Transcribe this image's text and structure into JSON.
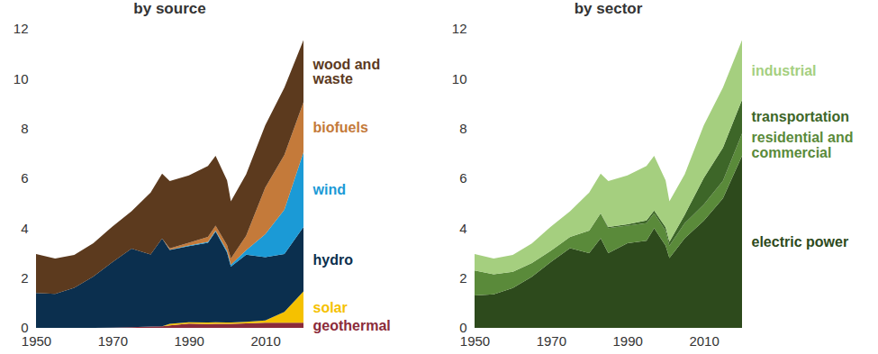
{
  "chart_data": [
    {
      "type": "area",
      "title": "by source",
      "stacked": true,
      "x": [
        1950,
        1955,
        1960,
        1965,
        1970,
        1975,
        1980,
        1983,
        1985,
        1990,
        1995,
        1997,
        2000,
        2001,
        2005,
        2010,
        2015,
        2020
      ],
      "xlim": [
        1950,
        2020
      ],
      "xticks": [
        1950,
        1970,
        1990,
        2010
      ],
      "ylim": [
        0,
        12
      ],
      "yticks": [
        0,
        2,
        4,
        6,
        8,
        10,
        12
      ],
      "series": [
        {
          "name": "geothermal",
          "color": "#8b2b3a",
          "values": [
            0,
            0,
            0.001,
            0.004,
            0.01,
            0.03,
            0.05,
            0.06,
            0.1,
            0.17,
            0.15,
            0.16,
            0.16,
            0.16,
            0.18,
            0.21,
            0.21,
            0.21
          ]
        },
        {
          "name": "solar",
          "color": "#f5c100",
          "values": [
            0,
            0,
            0,
            0,
            0,
            0,
            0,
            0,
            0.06,
            0.06,
            0.07,
            0.07,
            0.06,
            0.06,
            0.06,
            0.09,
            0.43,
            1.25
          ]
        },
        {
          "name": "hydro",
          "color": "#0b2f4e",
          "values": [
            1.4,
            1.36,
            1.61,
            2.06,
            2.63,
            3.15,
            2.9,
            3.53,
            2.97,
            3.05,
            3.2,
            3.64,
            2.81,
            2.24,
            2.7,
            2.54,
            2.32,
            2.59
          ]
        },
        {
          "name": "wind",
          "color": "#1b9ad6",
          "values": [
            0,
            0,
            0,
            0,
            0,
            0,
            0,
            0,
            0.01,
            0.03,
            0.03,
            0.03,
            0.06,
            0.07,
            0.18,
            0.92,
            1.78,
            3.0
          ]
        },
        {
          "name": "biofuels",
          "color": "#c47a3a",
          "values": [
            0,
            0,
            0,
            0,
            0,
            0,
            0,
            0,
            0.05,
            0.11,
            0.2,
            0.2,
            0.23,
            0.25,
            0.58,
            1.87,
            2.2,
            2.0
          ]
        },
        {
          "name": "wood and waste",
          "color": "#5c3a1e",
          "values": [
            1.56,
            1.42,
            1.32,
            1.33,
            1.43,
            1.5,
            2.48,
            2.6,
            2.7,
            2.7,
            2.85,
            2.8,
            2.6,
            2.3,
            2.46,
            2.5,
            2.7,
            2.5
          ]
        }
      ]
    },
    {
      "type": "area",
      "title": "by sector",
      "stacked": true,
      "x": [
        1950,
        1955,
        1960,
        1965,
        1970,
        1975,
        1980,
        1983,
        1985,
        1990,
        1995,
        1997,
        2000,
        2001,
        2005,
        2010,
        2015,
        2020
      ],
      "xlim": [
        1950,
        2020
      ],
      "xticks": [
        1950,
        1970,
        1990,
        2010
      ],
      "ylim": [
        0,
        12
      ],
      "yticks": [
        0,
        2,
        4,
        6,
        8,
        10,
        12
      ],
      "series": [
        {
          "name": "electric power",
          "color": "#2d4a1c",
          "values": [
            1.3,
            1.35,
            1.6,
            2.05,
            2.65,
            3.2,
            3.0,
            3.6,
            3.0,
            3.4,
            3.5,
            4.0,
            3.3,
            2.8,
            3.6,
            4.3,
            5.2,
            6.9
          ]
        },
        {
          "name": "residential and commercial",
          "color": "#5a8a3a",
          "values": [
            1.0,
            0.8,
            0.65,
            0.55,
            0.45,
            0.45,
            0.9,
            1.0,
            1.0,
            0.7,
            0.7,
            0.6,
            0.6,
            0.5,
            0.6,
            0.65,
            0.7,
            0.9
          ]
        },
        {
          "name": "transportation",
          "color": "#3d6628",
          "values": [
            0,
            0,
            0,
            0,
            0,
            0,
            0,
            0,
            0.05,
            0.06,
            0.11,
            0.11,
            0.14,
            0.15,
            0.34,
            1.07,
            1.33,
            1.35
          ]
        },
        {
          "name": "industrial",
          "color": "#a5cf7f",
          "values": [
            0.66,
            0.63,
            0.68,
            0.79,
            0.97,
            1.03,
            1.53,
            1.59,
            1.84,
            1.96,
            2.19,
            2.19,
            1.88,
            1.63,
            1.62,
            2.11,
            2.41,
            2.4
          ]
        }
      ]
    }
  ]
}
